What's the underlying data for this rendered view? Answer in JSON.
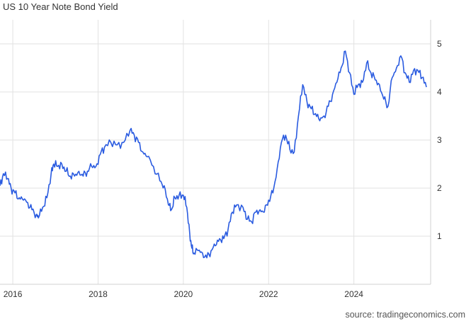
{
  "header": {
    "title": "US 10 Year Note Bond Yield"
  },
  "footer": {
    "source": "source: tradingeconomics.com"
  },
  "chart_data": {
    "type": "line",
    "title": "US 10 Year Note Bond Yield",
    "xlabel": "",
    "ylabel": "",
    "xlim": [
      2015.7,
      2025.8
    ],
    "ylim": [
      0,
      5.5
    ],
    "x_ticks": [
      2016,
      2018,
      2020,
      2022,
      2024
    ],
    "x_tick_labels": [
      "2016",
      "2018",
      "2020",
      "2022",
      "2024"
    ],
    "y_ticks": [
      1,
      2,
      3,
      4,
      5
    ],
    "y_tick_labels": [
      "1",
      "2",
      "3",
      "4",
      "5"
    ],
    "grid": true,
    "legend": "none",
    "line_color": "#2a5be0",
    "series": [
      {
        "x": [
          2015.7,
          2015.78,
          2015.88,
          2015.96,
          2016.05,
          2016.15,
          2016.25,
          2016.35,
          2016.45,
          2016.55,
          2016.6,
          2016.7,
          2016.8,
          2016.9,
          2016.96,
          2017.05,
          2017.15,
          2017.25,
          2017.35,
          2017.45,
          2017.55,
          2017.65,
          2017.75,
          2017.85,
          2017.95,
          2018.05,
          2018.15,
          2018.3,
          2018.45,
          2018.6,
          2018.75,
          2018.85,
          2018.95,
          2019.05,
          2019.15,
          2019.3,
          2019.45,
          2019.55,
          2019.65,
          2019.72,
          2019.8,
          2019.9,
          2020.0,
          2020.08,
          2020.15,
          2020.2,
          2020.25,
          2020.35,
          2020.45,
          2020.55,
          2020.65,
          2020.75,
          2020.85,
          2020.95,
          2021.05,
          2021.15,
          2021.25,
          2021.4,
          2021.5,
          2021.6,
          2021.7,
          2021.8,
          2021.9,
          2022.0,
          2022.1,
          2022.2,
          2022.3,
          2022.4,
          2022.5,
          2022.6,
          2022.7,
          2022.8,
          2022.9,
          2023.0,
          2023.1,
          2023.2,
          2023.3,
          2023.4,
          2023.5,
          2023.6,
          2023.7,
          2023.8,
          2023.9,
          2024.0,
          2024.1,
          2024.2,
          2024.3,
          2024.4,
          2024.5,
          2024.6,
          2024.7,
          2024.8,
          2024.9,
          2025.0,
          2025.1,
          2025.2,
          2025.3,
          2025.4,
          2025.5,
          2025.6,
          2025.7
        ],
        "values": [
          2.05,
          2.3,
          2.2,
          2.0,
          1.9,
          1.8,
          1.75,
          1.7,
          1.55,
          1.45,
          1.38,
          1.6,
          1.8,
          2.3,
          2.5,
          2.45,
          2.5,
          2.35,
          2.25,
          2.25,
          2.35,
          2.25,
          2.35,
          2.45,
          2.45,
          2.7,
          2.85,
          2.95,
          2.9,
          2.95,
          3.2,
          3.1,
          2.95,
          2.75,
          2.65,
          2.45,
          2.15,
          2.05,
          1.65,
          1.55,
          1.8,
          1.85,
          1.85,
          1.6,
          1.05,
          0.75,
          0.65,
          0.7,
          0.65,
          0.55,
          0.7,
          0.8,
          0.95,
          0.95,
          1.15,
          1.5,
          1.65,
          1.6,
          1.35,
          1.3,
          1.5,
          1.55,
          1.5,
          1.75,
          1.9,
          2.4,
          2.95,
          3.1,
          2.8,
          2.75,
          3.5,
          4.15,
          3.8,
          3.65,
          3.55,
          3.4,
          3.5,
          3.7,
          3.95,
          4.2,
          4.5,
          4.85,
          4.4,
          3.95,
          4.15,
          4.2,
          4.6,
          4.4,
          4.25,
          4.15,
          3.85,
          3.7,
          4.3,
          4.5,
          4.75,
          4.4,
          4.2,
          4.45,
          4.45,
          4.3,
          4.1
        ]
      }
    ]
  }
}
